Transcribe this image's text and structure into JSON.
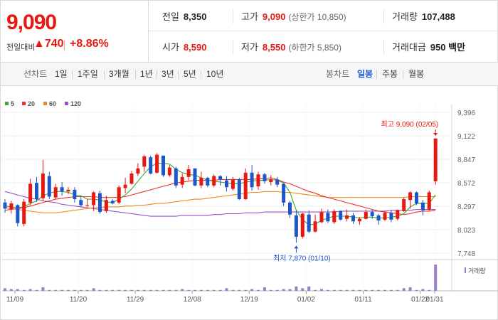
{
  "header": {
    "price": "9,090",
    "change_label": "전일대비",
    "change_amount": "▲740",
    "change_percent": "+8.86%"
  },
  "stats": {
    "row1": [
      {
        "label": "전일",
        "value": "8,350",
        "color": "",
        "limit": ""
      },
      {
        "label": "고가",
        "value": "9,090",
        "color": "red",
        "limit": "(상한가 10,850)"
      },
      {
        "label": "거래량",
        "value": "107,488",
        "color": "",
        "limit": ""
      }
    ],
    "row2": [
      {
        "label": "시가",
        "value": "8,590",
        "color": "red",
        "limit": ""
      },
      {
        "label": "저가",
        "value": "8,550",
        "color": "red",
        "limit": "(하한가 5,850)"
      },
      {
        "label": "거래대금",
        "value": "950 백만",
        "color": "",
        "limit": ""
      }
    ]
  },
  "toolbar": {
    "line_label": "선차트",
    "periods": [
      "1일",
      "1주일",
      "3개월",
      "1년",
      "3년",
      "5년",
      "10년"
    ],
    "candle_label": "봉차트",
    "candle_types": [
      "일봉",
      "주봉",
      "월봉"
    ],
    "selected_candle": "일봉"
  },
  "colors": {
    "up": "#e8170f",
    "down": "#1e57c9",
    "ma5": "#3aa833",
    "ma20": "#e8342c",
    "ma60": "#f08a1c",
    "ma120": "#9a52c7",
    "volume": "#9a80c8"
  },
  "chart_data": {
    "type": "candlestick",
    "legend": [
      {
        "name": "5",
        "color": "#3aa833"
      },
      {
        "name": "20",
        "color": "#e8342c"
      },
      {
        "name": "60",
        "color": "#f08a1c"
      },
      {
        "name": "120",
        "color": "#9a52c7"
      }
    ],
    "y_ticks": [
      "9,396",
      "9,122",
      "8,847",
      "8,572",
      "8,297",
      "8,023",
      "7,748"
    ],
    "ylim": [
      7748,
      9396
    ],
    "x_ticks": [
      "11/09",
      "11/20",
      "11/29",
      "12/08",
      "12/19",
      "01/02",
      "01/11",
      "01/22",
      "01/31"
    ],
    "annotations": {
      "high": "최고 9,090 (02/05)",
      "low": "최저 7,870 (01/10)"
    },
    "volume_label": "거래량",
    "candles": [
      [
        8340,
        8270,
        8380,
        8220
      ],
      [
        8260,
        8330,
        8360,
        8210
      ],
      [
        8310,
        8100,
        8320,
        8060
      ],
      [
        8090,
        8350,
        8380,
        8060
      ],
      [
        8340,
        8560,
        8620,
        8310
      ],
      [
        8570,
        8380,
        8640,
        8350
      ],
      [
        8390,
        8680,
        8840,
        8360
      ],
      [
        8650,
        8410,
        8700,
        8380
      ],
      [
        8400,
        8520,
        8560,
        8380
      ],
      [
        8520,
        8470,
        8580,
        8420
      ],
      [
        8470,
        8490,
        8520,
        8440
      ],
      [
        8490,
        8380,
        8520,
        8340
      ],
      [
        8370,
        8310,
        8410,
        8290
      ],
      [
        8310,
        8310,
        8380,
        8290
      ],
      [
        8310,
        8460,
        8470,
        8240
      ],
      [
        8450,
        8230,
        8480,
        8210
      ],
      [
        8240,
        8370,
        8420,
        8220
      ],
      [
        8360,
        8330,
        8380,
        8320
      ],
      [
        8340,
        8520,
        8540,
        8320
      ],
      [
        8510,
        8550,
        8630,
        8450
      ],
      [
        8560,
        8680,
        8710,
        8550
      ],
      [
        8680,
        8740,
        8800,
        8650
      ],
      [
        8760,
        8880,
        8900,
        8700
      ],
      [
        8870,
        8680,
        8890,
        8670
      ],
      [
        8690,
        8900,
        8920,
        8680
      ],
      [
        8890,
        8660,
        8890,
        8640
      ],
      [
        8660,
        8750,
        8780,
        8640
      ],
      [
        8740,
        8540,
        8760,
        8510
      ],
      [
        8550,
        8640,
        8680,
        8510
      ],
      [
        8640,
        8730,
        8780,
        8600
      ],
      [
        8740,
        8540,
        8740,
        8530
      ],
      [
        8540,
        8630,
        8700,
        8510
      ],
      [
        8630,
        8540,
        8640,
        8520
      ],
      [
        8540,
        8650,
        8670,
        8520
      ],
      [
        8650,
        8610,
        8660,
        8540
      ],
      [
        8600,
        8520,
        8650,
        8470
      ],
      [
        8500,
        8610,
        8640,
        8480
      ],
      [
        8610,
        8380,
        8630,
        8370
      ],
      [
        8380,
        8690,
        8740,
        8370
      ],
      [
        8690,
        8520,
        8780,
        8480
      ],
      [
        8530,
        8670,
        8700,
        8490
      ],
      [
        8670,
        8590,
        8690,
        8560
      ],
      [
        8580,
        8610,
        8660,
        8540
      ],
      [
        8610,
        8550,
        8640,
        8520
      ],
      [
        8560,
        8340,
        8560,
        8300
      ],
      [
        8340,
        8200,
        8360,
        8160
      ],
      [
        8190,
        7940,
        8250,
        7870
      ],
      [
        7940,
        8210,
        8220,
        7920
      ],
      [
        8200,
        8000,
        8250,
        7980
      ],
      [
        8000,
        8120,
        8200,
        7990
      ],
      [
        8110,
        8230,
        8270,
        8100
      ],
      [
        8220,
        8120,
        8260,
        8100
      ],
      [
        8110,
        8240,
        8260,
        8090
      ],
      [
        8240,
        8140,
        8250,
        8130
      ],
      [
        8150,
        8190,
        8260,
        8120
      ],
      [
        8190,
        8120,
        8220,
        8090
      ],
      [
        8120,
        8150,
        8170,
        8080
      ],
      [
        8150,
        8230,
        8260,
        8140
      ],
      [
        8230,
        8180,
        8260,
        8150
      ],
      [
        8190,
        8130,
        8210,
        8080
      ],
      [
        8140,
        8220,
        8240,
        8120
      ],
      [
        8220,
        8140,
        8250,
        8110
      ],
      [
        8150,
        8250,
        8260,
        8130
      ],
      [
        8240,
        8380,
        8400,
        8230
      ],
      [
        8370,
        8460,
        8470,
        8270
      ],
      [
        8460,
        8330,
        8470,
        8310
      ],
      [
        8340,
        8250,
        8370,
        8190
      ],
      [
        8260,
        8460,
        8480,
        8240
      ],
      [
        8590,
        9090,
        9090,
        8550
      ]
    ],
    "volumes": [
      3,
      2,
      2,
      1,
      2,
      1,
      4,
      1,
      1,
      1,
      1,
      1,
      1,
      1,
      3,
      1,
      1,
      1,
      1,
      1,
      1,
      1,
      1,
      1,
      1,
      1,
      1,
      1,
      2,
      1,
      1,
      1,
      1,
      1,
      1,
      3,
      1,
      1,
      1,
      2,
      1,
      4,
      1,
      1,
      2,
      2,
      5,
      3,
      5,
      1,
      2,
      1,
      1,
      1,
      1,
      1,
      1,
      1,
      1,
      1,
      1,
      1,
      1,
      3,
      4,
      1,
      2,
      1,
      30
    ],
    "ma5": [
      8300,
      8290,
      8280,
      8290,
      8330,
      8360,
      8420,
      8450,
      8470,
      8470,
      8460,
      8430,
      8420,
      8380,
      8380,
      8370,
      8350,
      8340,
      8380,
      8430,
      8500,
      8590,
      8680,
      8760,
      8800,
      8800,
      8790,
      8730,
      8690,
      8670,
      8660,
      8630,
      8600,
      8590,
      8580,
      8570,
      8560,
      8560,
      8580,
      8590,
      8600,
      8600,
      8610,
      8600,
      8570,
      8460,
      8250,
      8140,
      8080,
      8090,
      8130,
      8160,
      8180,
      8180,
      8180,
      8170,
      8160,
      8170,
      8170,
      8160,
      8160,
      8170,
      8180,
      8210,
      8290,
      8330,
      8330,
      8330,
      8430
    ],
    "ma20": [
      8250,
      8260,
      8270,
      8280,
      8300,
      8320,
      8340,
      8360,
      8380,
      8390,
      8400,
      8410,
      8410,
      8410,
      8410,
      8400,
      8400,
      8400,
      8400,
      8410,
      8430,
      8450,
      8470,
      8490,
      8510,
      8530,
      8550,
      8570,
      8580,
      8590,
      8600,
      8600,
      8600,
      8600,
      8610,
      8610,
      8610,
      8610,
      8610,
      8610,
      8620,
      8620,
      8630,
      8610,
      8580,
      8560,
      8530,
      8500,
      8470,
      8450,
      8420,
      8400,
      8380,
      8360,
      8340,
      8320,
      8300,
      8280,
      8260,
      8240,
      8230,
      8220,
      8210,
      8200,
      8210,
      8230,
      8240,
      8240,
      8250
    ],
    "ma60": [
      8280,
      8270,
      8260,
      8250,
      8240,
      8230,
      8220,
      8220,
      8220,
      8230,
      8240,
      8250,
      8260,
      8270,
      8280,
      8280,
      8290,
      8290,
      8290,
      8300,
      8300,
      8310,
      8310,
      8320,
      8330,
      8330,
      8340,
      8350,
      8360,
      8370,
      8380,
      8380,
      8390,
      8400,
      8410,
      8420,
      8430,
      8440,
      8450,
      8460,
      8460,
      8470,
      8470,
      8470,
      8460,
      8460,
      8450,
      8440,
      8430,
      8420,
      8410,
      8400,
      8400,
      8400,
      8400,
      8400,
      8400,
      8400,
      8400,
      8400,
      8400,
      8400,
      8400,
      8400,
      8410,
      8410,
      8410,
      8410,
      8410
    ],
    "ma120": [
      8470,
      8450,
      8430,
      8410,
      8390,
      8380,
      8360,
      8350,
      8340,
      8320,
      8310,
      8300,
      8290,
      8280,
      8270,
      8260,
      8250,
      8240,
      8230,
      8220,
      8210,
      8200,
      8190,
      8180,
      8180,
      8180,
      8180,
      8180,
      8190,
      8190,
      8190,
      8190,
      8190,
      8200,
      8200,
      8210,
      8210,
      8210,
      8220,
      8220,
      8220,
      8230,
      8230,
      8230,
      8230,
      8230,
      8230,
      8230,
      8230,
      8230,
      8230,
      8230,
      8230,
      8240,
      8240,
      8240,
      8240,
      8240,
      8240,
      8240,
      8240,
      8250,
      8250,
      8250,
      8250,
      8260,
      8260,
      8260,
      8260
    ]
  }
}
